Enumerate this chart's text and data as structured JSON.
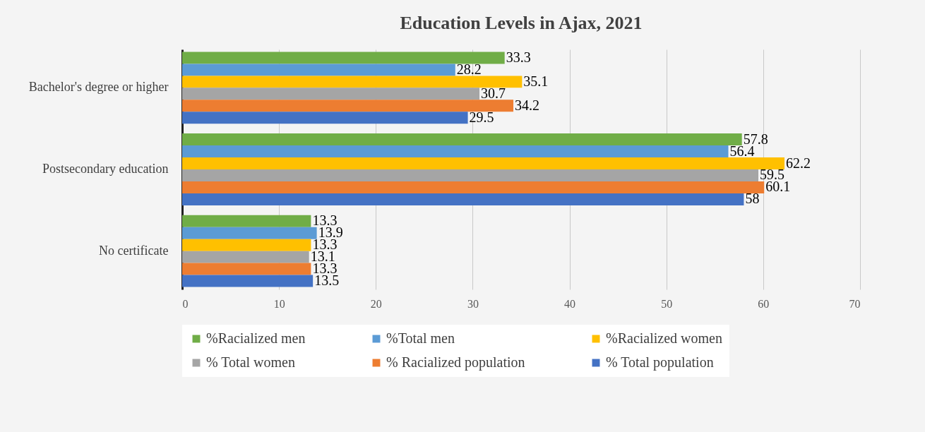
{
  "chart_data": {
    "type": "bar",
    "orientation": "horizontal",
    "title": "Education Levels in Ajax, 2021",
    "categories": [
      "Bachelor's degree or higher",
      "Postsecondary education",
      "No certificate"
    ],
    "series": [
      {
        "name": "%Racialized men",
        "color": "#70ad47",
        "values": [
          33.3,
          57.8,
          13.3
        ]
      },
      {
        "name": "%Total men",
        "color": "#5b9bd5",
        "values": [
          28.2,
          56.4,
          13.9
        ]
      },
      {
        "name": "%Racialized women",
        "color": "#ffc000",
        "values": [
          35.1,
          62.2,
          13.3
        ]
      },
      {
        "name": "% Total women",
        "color": "#a5a5a5",
        "values": [
          30.7,
          59.5,
          13.1
        ]
      },
      {
        "name": "% Racialized population",
        "color": "#ed7d31",
        "values": [
          34.2,
          60.1,
          13.3
        ]
      },
      {
        "name": "% Total population",
        "color": "#4472c4",
        "values": [
          29.5,
          58,
          13.5
        ]
      }
    ],
    "xlim": [
      0,
      70
    ],
    "xticks": [
      0,
      10,
      20,
      30,
      40,
      50,
      60,
      70
    ],
    "grid": "x",
    "legend": "bottom",
    "data_labels": true
  }
}
